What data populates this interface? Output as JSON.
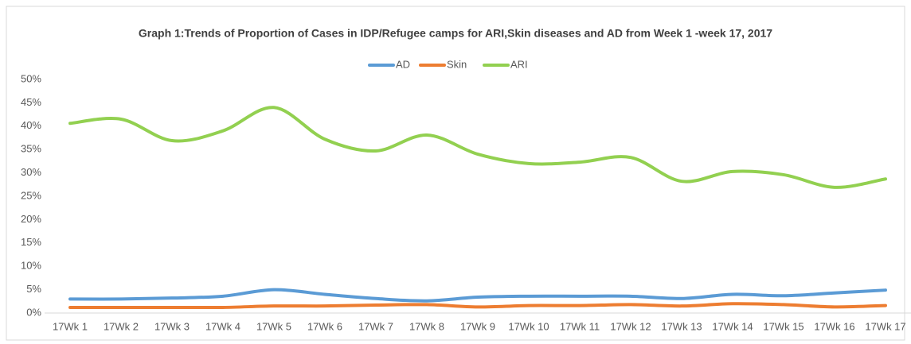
{
  "chart_data": {
    "type": "line",
    "title": "Graph 1:Trends of Proportion of Cases in IDP/Refugee camps for ARI,Skin diseases and AD from Week 1 -week 17, 2017",
    "categories": [
      "17Wk 1",
      "17Wk 2",
      "17Wk 3",
      "17Wk 4",
      "17Wk 5",
      "17Wk 6",
      "17Wk 7",
      "17Wk 8",
      "17Wk 9",
      "17Wk 10",
      "17Wk 11",
      "17Wk 12",
      "17Wk 13",
      "17Wk 14",
      "17Wk 15",
      "17Wk 16",
      "17Wk 17"
    ],
    "series": [
      {
        "name": "AD",
        "color": "#5b9bd5",
        "values": [
          3,
          3,
          3.2,
          3.6,
          5,
          4,
          3.1,
          2.6,
          3.4,
          3.6,
          3.6,
          3.6,
          3.1,
          4,
          3.7,
          4.3,
          4.9
        ]
      },
      {
        "name": "Skin",
        "color": "#ed7d31",
        "values": [
          1.2,
          1.2,
          1.2,
          1.2,
          1.5,
          1.5,
          1.7,
          1.8,
          1.3,
          1.6,
          1.6,
          1.8,
          1.5,
          2,
          1.8,
          1.3,
          1.6
        ]
      },
      {
        "name": "ARI",
        "color": "#92d050",
        "values": [
          40.6,
          41.5,
          36.9,
          39,
          44,
          37.2,
          34.7,
          38.1,
          34,
          32,
          32.3,
          33.3,
          28.2,
          30.3,
          29.6,
          26.9,
          28.7
        ]
      }
    ],
    "ylim": [
      0,
      50
    ],
    "yticks": [
      {
        "value": 0,
        "label": "0%"
      },
      {
        "value": 5,
        "label": "5%"
      },
      {
        "value": 10,
        "label": "10%"
      },
      {
        "value": 15,
        "label": "15%"
      },
      {
        "value": 20,
        "label": "20%"
      },
      {
        "value": 25,
        "label": "25%"
      },
      {
        "value": 30,
        "label": "30%"
      },
      {
        "value": 35,
        "label": "35%"
      },
      {
        "value": 40,
        "label": "40%"
      },
      {
        "value": 45,
        "label": "45%"
      },
      {
        "value": 50,
        "label": "50%"
      }
    ],
    "legend": "top",
    "grid": false,
    "smooth": true
  }
}
